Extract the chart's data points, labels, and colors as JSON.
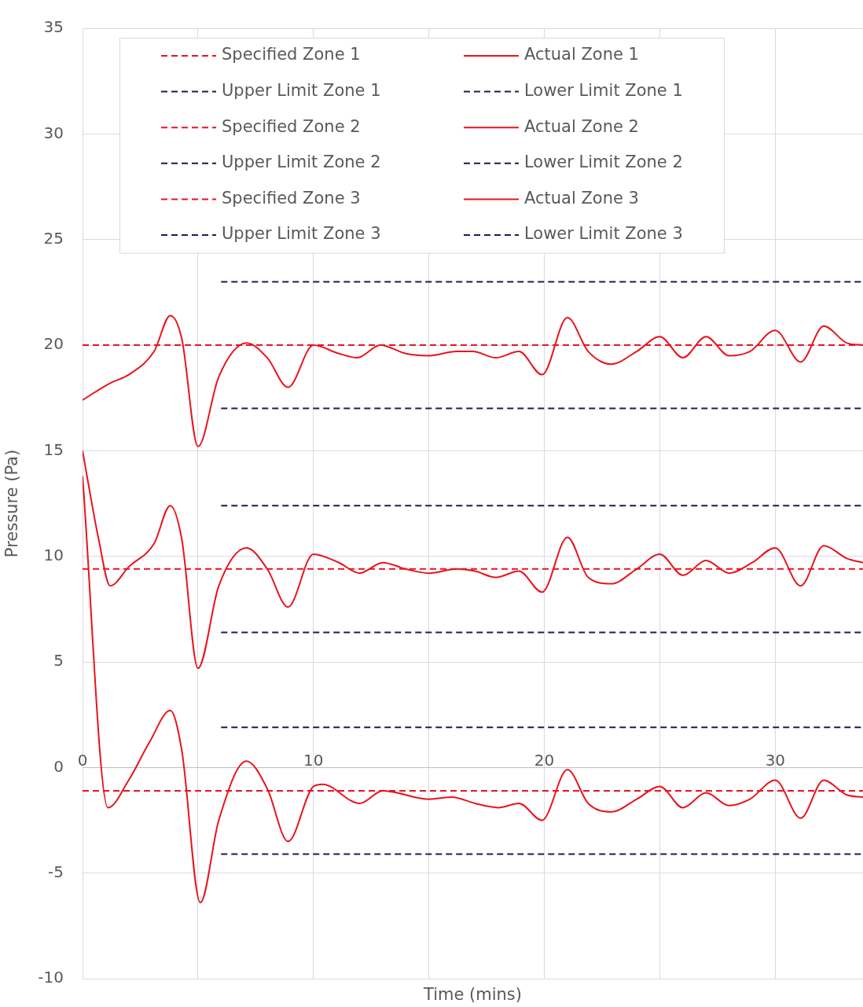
{
  "chart_data": {
    "type": "line",
    "xlabel": "Time (mins)",
    "ylabel": "Pressure (Pa)",
    "xlim": [
      0,
      33.8
    ],
    "ylim": [
      -10,
      35
    ],
    "xticks": [
      0,
      {
        "value": 5,
        "label": null
      },
      10,
      {
        "value": 15,
        "label": null
      },
      20,
      {
        "value": 25,
        "label": null
      },
      30
    ],
    "yticks": [
      -10,
      -5,
      0,
      5,
      10,
      15,
      20,
      25,
      30,
      35
    ],
    "grid": true,
    "legend": "top",
    "marker": "none",
    "series": [
      {
        "name": "Specified Zone 1",
        "color": "#e8141e",
        "line_style": "dashed",
        "x": [
          0,
          33.8
        ],
        "values": [
          20,
          20
        ]
      },
      {
        "name": "Actual Zone 1",
        "color": "#e8141e",
        "line_style": "solid",
        "x": [
          0,
          1.2,
          2.0,
          3.1,
          3.8,
          4.3,
          5.0,
          5.9,
          7.1,
          8.0,
          8.9,
          10.0,
          11.1,
          11.9,
          12.9,
          14.0,
          15.0,
          16.2,
          16.9,
          17.9,
          18.9,
          19.9,
          21.0,
          21.9,
          22.9,
          24.0,
          25.0,
          26.0,
          27.0,
          28.0,
          28.9,
          30.0,
          31.1,
          32.1,
          33.1,
          33.8
        ],
        "values": [
          17.4,
          18.2,
          18.6,
          19.7,
          21.4,
          20.3,
          15.2,
          18.5,
          20.1,
          19.4,
          18.0,
          20.0,
          19.6,
          19.4,
          20.0,
          19.6,
          19.5,
          19.7,
          19.7,
          19.4,
          19.7,
          18.6,
          21.3,
          19.7,
          19.1,
          19.7,
          20.4,
          19.4,
          20.4,
          19.5,
          19.7,
          20.7,
          19.2,
          20.9,
          20.1,
          20.0
        ]
      },
      {
        "name": "Upper Limit Zone 1",
        "color": "#1f1a4f",
        "line_style": "dashed",
        "x": [
          6,
          33.8
        ],
        "values": [
          23,
          23
        ]
      },
      {
        "name": "Lower Limit Zone 1",
        "color": "#1f1a4f",
        "line_style": "dashed",
        "x": [
          6,
          33.8
        ],
        "values": [
          17,
          17
        ]
      },
      {
        "name": "Specified Zone 2",
        "color": "#e8141e",
        "line_style": "dashed",
        "x": [
          0,
          33.8
        ],
        "values": [
          9.4,
          9.4
        ]
      },
      {
        "name": "Actual Zone 2",
        "color": "#e8141e",
        "line_style": "solid",
        "x": [
          0,
          0.7,
          1.2,
          2.0,
          3.1,
          3.8,
          4.3,
          5.0,
          5.9,
          7.1,
          8.0,
          8.9,
          10.0,
          11.1,
          12.0,
          13.0,
          14.0,
          15.0,
          16.2,
          17.0,
          17.9,
          18.9,
          19.9,
          21.0,
          21.9,
          22.9,
          24.0,
          25.0,
          26.0,
          27.0,
          28.0,
          29.0,
          30.0,
          31.1,
          32.1,
          33.1,
          33.8
        ],
        "values": [
          15.0,
          10.8,
          8.6,
          9.5,
          10.6,
          12.4,
          10.8,
          4.7,
          8.6,
          10.4,
          9.4,
          7.6,
          10.1,
          9.7,
          9.2,
          9.7,
          9.4,
          9.2,
          9.4,
          9.3,
          9.0,
          9.3,
          8.3,
          10.9,
          9.0,
          8.7,
          9.4,
          10.1,
          9.1,
          9.8,
          9.2,
          9.7,
          10.4,
          8.6,
          10.5,
          9.9,
          9.7
        ]
      },
      {
        "name": "Upper Limit Zone 2",
        "color": "#1f1a4f",
        "line_style": "dashed",
        "x": [
          6,
          33.8
        ],
        "values": [
          12.4,
          12.4
        ]
      },
      {
        "name": "Lower Limit Zone 2",
        "color": "#1f1a4f",
        "line_style": "dashed",
        "x": [
          6,
          33.8
        ],
        "values": [
          6.4,
          6.4
        ]
      },
      {
        "name": "Specified Zone 3",
        "color": "#e8141e",
        "line_style": "dashed",
        "x": [
          0,
          33.8
        ],
        "values": [
          -1.1,
          -1.1
        ]
      },
      {
        "name": "Actual Zone 3",
        "color": "#e8141e",
        "line_style": "solid",
        "x": [
          0,
          1.1,
          2.0,
          2.9,
          3.8,
          4.3,
          5.1,
          5.9,
          7.1,
          8.0,
          8.9,
          10.0,
          10.4,
          12.0,
          13.0,
          15.0,
          16.0,
          17.0,
          18.0,
          18.9,
          19.9,
          21.0,
          21.9,
          22.9,
          24.0,
          25.0,
          26.0,
          27.0,
          28.0,
          28.9,
          30.0,
          31.1,
          32.1,
          33.1,
          33.8
        ],
        "values": [
          13.8,
          -1.9,
          -0.6,
          1.2,
          2.7,
          0.8,
          -6.4,
          -2.5,
          0.3,
          -1.0,
          -3.5,
          -0.9,
          -0.8,
          -1.7,
          -1.1,
          -1.5,
          -1.4,
          -1.7,
          -1.9,
          -1.7,
          -2.5,
          -0.1,
          -1.7,
          -2.1,
          -1.5,
          -0.9,
          -1.9,
          -1.2,
          -1.8,
          -1.5,
          -0.6,
          -2.4,
          -0.6,
          -1.3,
          -1.4
        ]
      },
      {
        "name": "Upper Limit Zone 3",
        "color": "#1f1a4f",
        "line_style": "dashed",
        "x": [
          6,
          33.8
        ],
        "values": [
          1.9,
          1.9
        ]
      },
      {
        "name": "Lower Limit Zone 3",
        "color": "#1f1a4f",
        "line_style": "dashed",
        "x": [
          6,
          33.8
        ],
        "values": [
          -4.1,
          -4.1
        ]
      }
    ]
  }
}
